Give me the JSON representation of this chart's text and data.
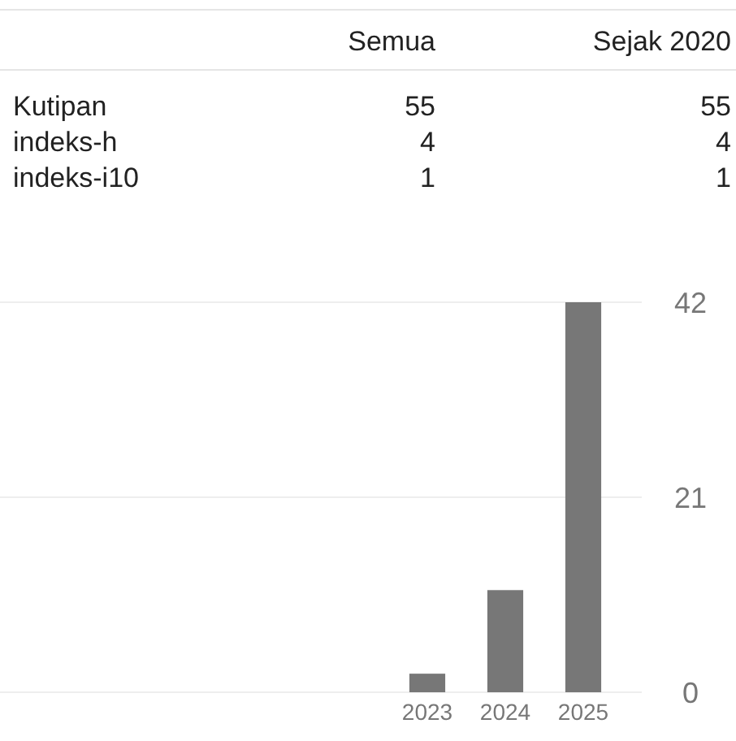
{
  "chart_data": [
    {
      "type": "other",
      "categories": [
        "Kutipan",
        "indeks-h",
        "indeks-i10"
      ],
      "series": [
        {
          "name": "Semua",
          "values": [
            55,
            4,
            1
          ]
        },
        {
          "name": "Sejak 2020",
          "values": [
            55,
            4,
            1
          ]
        }
      ],
      "data_labels": true
    },
    {
      "type": "bar",
      "categories": [
        "2023",
        "2024",
        "2025"
      ],
      "values": [
        2,
        11,
        42
      ],
      "color": "#777777",
      "ylim": [
        0,
        42
      ],
      "yticks": [
        0,
        21,
        42
      ],
      "grid": "y"
    }
  ]
}
